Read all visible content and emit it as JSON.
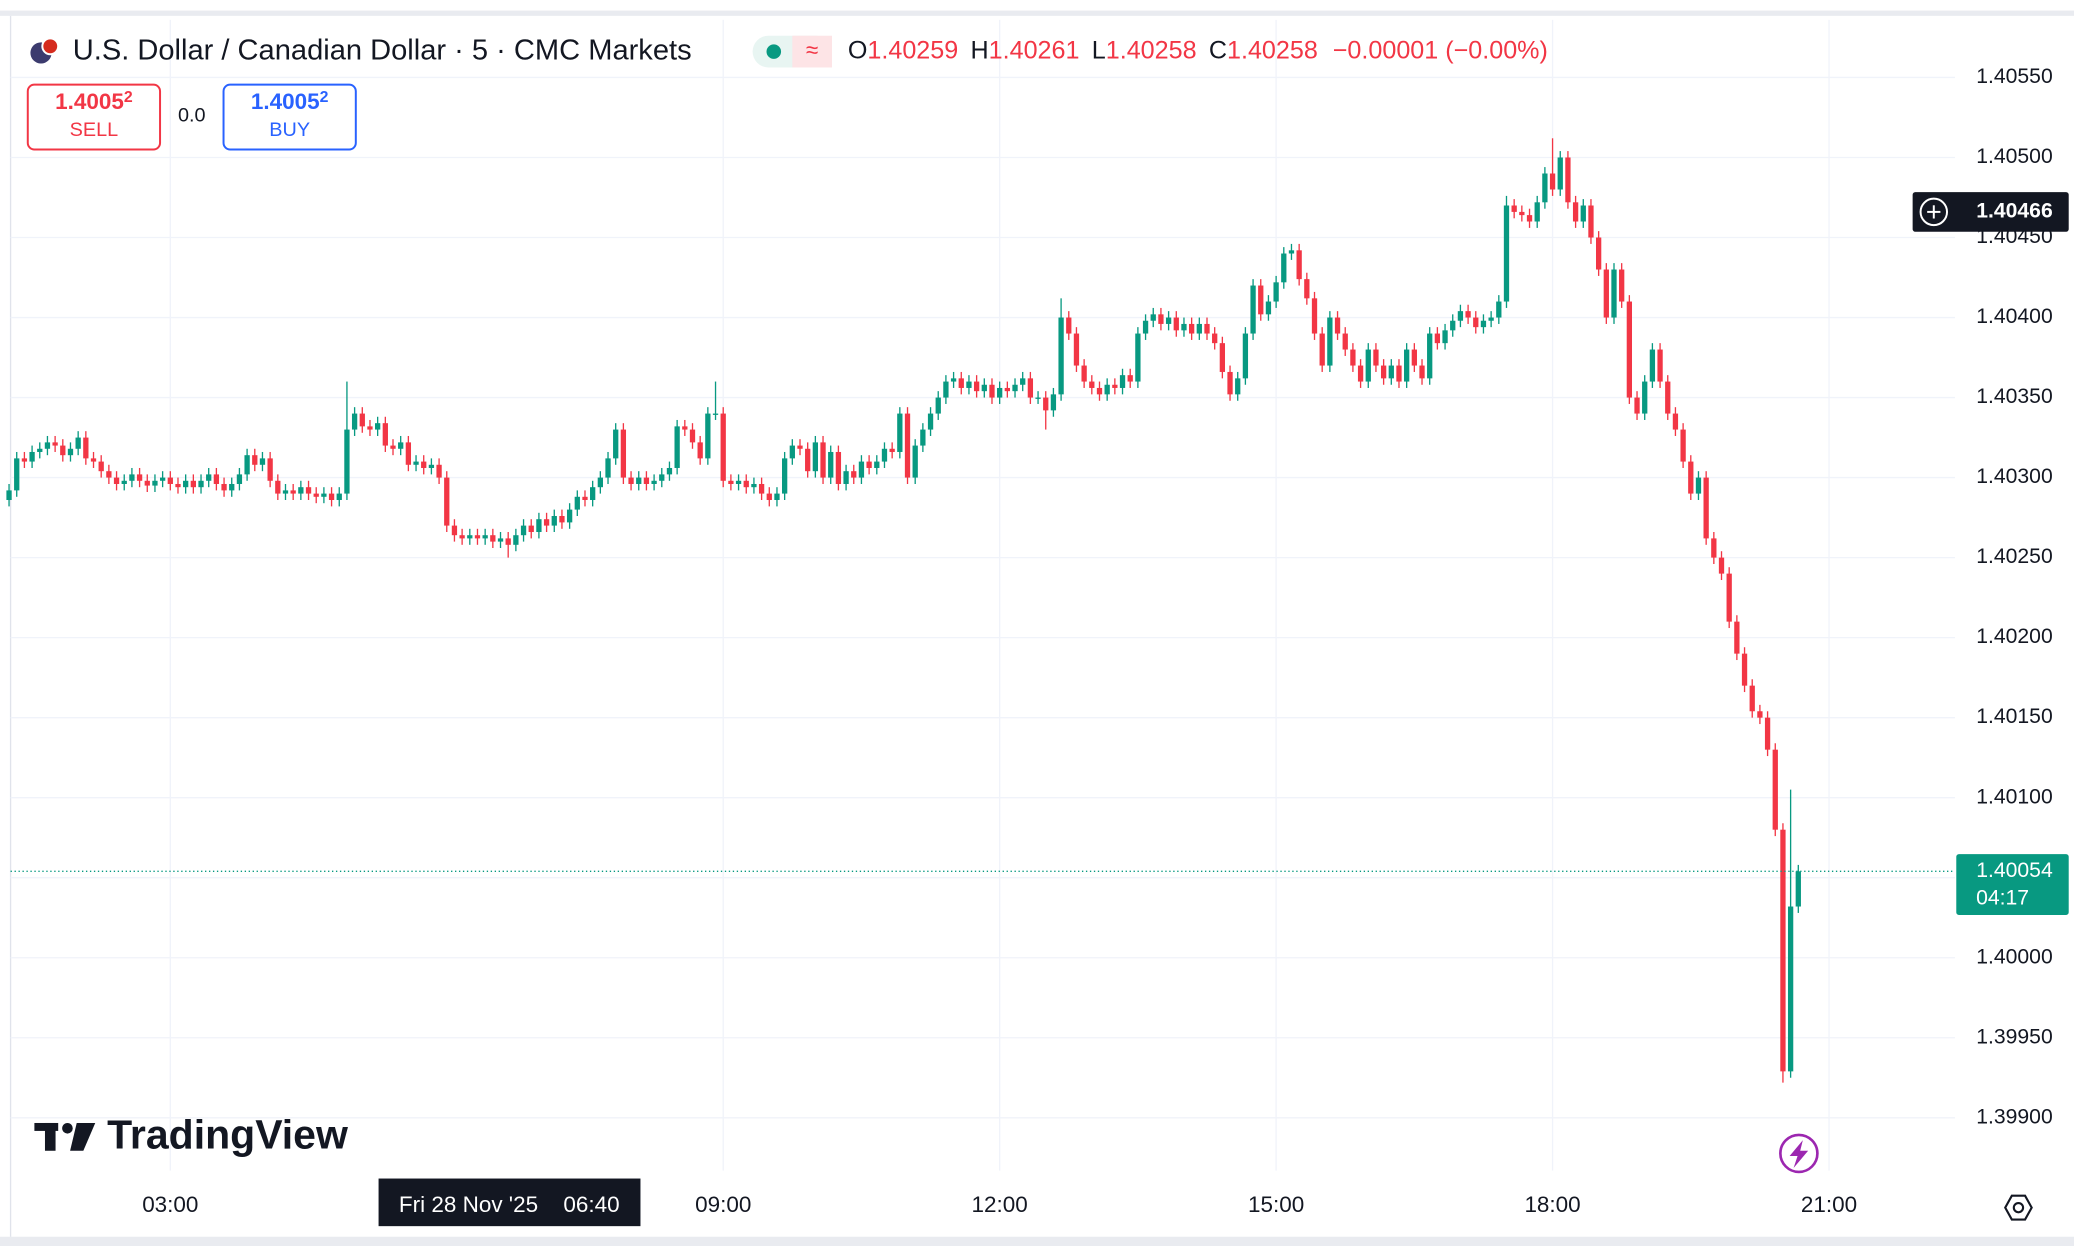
{
  "header": {
    "symbol": "U.S. Dollar / Canadian Dollar · 5 · CMC Markets",
    "ohlc": [
      {
        "label": "O",
        "value": "1.40259"
      },
      {
        "label": "H",
        "value": "1.40261"
      },
      {
        "label": "L",
        "value": "1.40258"
      },
      {
        "label": "C",
        "value": "1.40258"
      }
    ],
    "change": "−0.00001 (−0.00%)",
    "sell": {
      "price": "1.4005",
      "pip": "2",
      "label": "SELL"
    },
    "spread": "0.0",
    "buy": {
      "price": "1.4005",
      "pip": "2",
      "label": "BUY"
    },
    "watermark": "TradingView"
  },
  "chart_data": {
    "type": "candlestick",
    "up_color": "#089981",
    "down_color": "#f23645",
    "grid": true,
    "xlim": [
      0.2,
      253.4
    ],
    "ylim": [
      1.39867,
      1.40586
    ],
    "xticks": [
      {
        "value": 21,
        "label": "03:00"
      },
      {
        "value": 93,
        "label": "09:00"
      },
      {
        "value": 129,
        "label": "12:00"
      },
      {
        "value": 165,
        "label": "15:00"
      },
      {
        "value": 201,
        "label": "18:00"
      },
      {
        "value": 237,
        "label": "21:00"
      }
    ],
    "yticks": [
      {
        "value": 1.399,
        "label": "1.39900"
      },
      {
        "value": 1.3995,
        "label": "1.39950"
      },
      {
        "value": 1.4,
        "label": "1.40000"
      },
      {
        "value": 1.4005,
        "label": "1.40050"
      },
      {
        "value": 1.401,
        "label": "1.40100"
      },
      {
        "value": 1.4015,
        "label": "1.40150"
      },
      {
        "value": 1.402,
        "label": "1.40200"
      },
      {
        "value": 1.4025,
        "label": "1.40250"
      },
      {
        "value": 1.403,
        "label": "1.40300"
      },
      {
        "value": 1.4035,
        "label": "1.40350"
      },
      {
        "value": 1.404,
        "label": "1.40400"
      },
      {
        "value": 1.4045,
        "label": "1.40450"
      },
      {
        "value": 1.405,
        "label": "1.40500"
      },
      {
        "value": 1.4055,
        "label": "1.40550"
      }
    ],
    "crosshair": {
      "index": 65,
      "price": 1.40466,
      "date": "Fri 28 Nov '25",
      "time": "06:40"
    },
    "countdown": "04:17",
    "open": [
      1.40286,
      1.40292,
      1.40312,
      1.4031,
      1.40316,
      1.40318,
      1.40322,
      1.4032,
      1.40314,
      1.40318,
      1.40325,
      1.40312,
      1.4031,
      1.40304,
      1.403,
      1.40296,
      1.40298,
      1.40302,
      1.40298,
      1.40295,
      1.40298,
      1.403,
      1.40296,
      1.40294,
      1.40298,
      1.40294,
      1.40298,
      1.40302,
      1.40296,
      1.40292,
      1.40296,
      1.40302,
      1.40314,
      1.40308,
      1.40312,
      1.40298,
      1.4029,
      1.40292,
      1.4029,
      1.40294,
      1.4029,
      1.40288,
      1.4029,
      1.40286,
      1.4029,
      1.4033,
      1.4034,
      1.40332,
      1.4033,
      1.40334,
      1.4032,
      1.40318,
      1.40322,
      1.40308,
      1.4031,
      1.40306,
      1.40308,
      1.403,
      1.4027,
      1.40264,
      1.40262,
      1.40264,
      1.40262,
      1.40264,
      1.4026,
      1.40262,
      1.40258,
      1.40264,
      1.4027,
      1.40266,
      1.40274,
      1.4027,
      1.40276,
      1.40272,
      1.4028,
      1.40288,
      1.40286,
      1.40294,
      1.403,
      1.40312,
      1.4033,
      1.403,
      1.40296,
      1.403,
      1.40296,
      1.40298,
      1.40302,
      1.40306,
      1.40332,
      1.4033,
      1.40322,
      1.40312,
      1.4034,
      1.4034,
      1.40298,
      1.40296,
      1.40298,
      1.40294,
      1.40296,
      1.4029,
      1.40286,
      1.4029,
      1.40312,
      1.4032,
      1.40318,
      1.40304,
      1.40322,
      1.403,
      1.40316,
      1.40296,
      1.40304,
      1.403,
      1.4031,
      1.40306,
      1.4031,
      1.40318,
      1.40316,
      1.4034,
      1.403,
      1.4032,
      1.4033,
      1.4034,
      1.4035,
      1.4036,
      1.40362,
      1.40356,
      1.4036,
      1.40354,
      1.40358,
      1.4035,
      1.40356,
      1.40354,
      1.40358,
      1.40362,
      1.4035,
      1.4035,
      1.40342,
      1.40352,
      1.404,
      1.4039,
      1.4037,
      1.4036,
      1.40356,
      1.40352,
      1.40358,
      1.40356,
      1.40364,
      1.4036,
      1.4039,
      1.40398,
      1.40402,
      1.40396,
      1.404,
      1.40392,
      1.40396,
      1.4039,
      1.40396,
      1.4039,
      1.40384,
      1.40366,
      1.40352,
      1.40362,
      1.4039,
      1.4042,
      1.40402,
      1.4041,
      1.40422,
      1.4044,
      1.40442,
      1.40424,
      1.40412,
      1.4039,
      1.4037,
      1.404,
      1.4039,
      1.4038,
      1.4037,
      1.4036,
      1.4038,
      1.4037,
      1.40362,
      1.4037,
      1.4036,
      1.4038,
      1.4037,
      1.40362,
      1.4039,
      1.40384,
      1.40392,
      1.40398,
      1.40404,
      1.404,
      1.40394,
      1.40398,
      1.404,
      1.4041,
      1.4047,
      1.40466,
      1.40464,
      1.4046,
      1.40472,
      1.4049,
      1.4048,
      1.405,
      1.40472,
      1.4046,
      1.4047,
      1.4045,
      1.4043,
      1.404,
      1.4043,
      1.4041,
      1.4035,
      1.4034,
      1.4036,
      1.4038,
      1.4036,
      1.4034,
      1.4033,
      1.4031,
      1.4029,
      1.403,
      1.40262,
      1.4025,
      1.4024,
      1.4021,
      1.4019,
      1.4017,
      1.40154,
      1.4015,
      1.4013,
      1.4008,
      1.39929,
      1.40032
    ],
    "high": [
      1.40296,
      1.40316,
      1.40316,
      1.4032,
      1.40322,
      1.40326,
      1.40326,
      1.40324,
      1.40322,
      1.40329,
      1.40329,
      1.40316,
      1.40314,
      1.40308,
      1.40304,
      1.40302,
      1.40306,
      1.40306,
      1.40302,
      1.40302,
      1.40304,
      1.40304,
      1.403,
      1.40302,
      1.40302,
      1.40302,
      1.40306,
      1.40306,
      1.403,
      1.403,
      1.40306,
      1.40318,
      1.40318,
      1.40316,
      1.40316,
      1.40302,
      1.40296,
      1.40296,
      1.40298,
      1.40298,
      1.40294,
      1.40294,
      1.40294,
      1.40294,
      1.4036,
      1.40344,
      1.40344,
      1.40336,
      1.40338,
      1.40338,
      1.40324,
      1.40326,
      1.40326,
      1.40314,
      1.40314,
      1.40312,
      1.40312,
      1.40304,
      1.40274,
      1.40268,
      1.40268,
      1.40268,
      1.40268,
      1.40268,
      1.40266,
      1.40266,
      1.40268,
      1.40274,
      1.40274,
      1.40278,
      1.40278,
      1.4028,
      1.4028,
      1.40284,
      1.40292,
      1.40292,
      1.40298,
      1.40304,
      1.40316,
      1.40334,
      1.40334,
      1.40304,
      1.40304,
      1.40304,
      1.40302,
      1.40306,
      1.4031,
      1.40336,
      1.40336,
      1.40334,
      1.40326,
      1.40344,
      1.4036,
      1.40344,
      1.40302,
      1.40302,
      1.40302,
      1.403,
      1.403,
      1.40294,
      1.40294,
      1.40316,
      1.40324,
      1.40324,
      1.40322,
      1.40326,
      1.40326,
      1.4032,
      1.4032,
      1.40308,
      1.40308,
      1.40314,
      1.40314,
      1.40314,
      1.40322,
      1.40322,
      1.40344,
      1.40344,
      1.40324,
      1.40334,
      1.40344,
      1.40354,
      1.40364,
      1.40366,
      1.40366,
      1.40364,
      1.40364,
      1.40362,
      1.40362,
      1.4036,
      1.4036,
      1.40362,
      1.40366,
      1.40366,
      1.40354,
      1.40354,
      1.40356,
      1.40412,
      1.40404,
      1.40394,
      1.40374,
      1.40364,
      1.4036,
      1.40362,
      1.40362,
      1.40368,
      1.40368,
      1.40394,
      1.40402,
      1.40406,
      1.40406,
      1.40404,
      1.40404,
      1.404,
      1.404,
      1.404,
      1.404,
      1.40394,
      1.40388,
      1.4037,
      1.40366,
      1.40394,
      1.40424,
      1.40424,
      1.40414,
      1.40426,
      1.40444,
      1.40446,
      1.40446,
      1.40428,
      1.40416,
      1.40394,
      1.40404,
      1.40404,
      1.40394,
      1.40384,
      1.40374,
      1.40384,
      1.40384,
      1.40374,
      1.40374,
      1.40374,
      1.40384,
      1.40384,
      1.40374,
      1.40394,
      1.40394,
      1.40396,
      1.40402,
      1.40408,
      1.40408,
      1.40404,
      1.40402,
      1.40404,
      1.40414,
      1.40476,
      1.40474,
      1.4047,
      1.40468,
      1.40476,
      1.40494,
      1.40512,
      1.40504,
      1.40504,
      1.40476,
      1.40474,
      1.40474,
      1.40454,
      1.40434,
      1.40434,
      1.40434,
      1.40414,
      1.40354,
      1.40364,
      1.40384,
      1.40384,
      1.40364,
      1.40344,
      1.40334,
      1.40314,
      1.40304,
      1.40304,
      1.40266,
      1.40254,
      1.40244,
      1.40214,
      1.40194,
      1.40174,
      1.40158,
      1.40154,
      1.40134,
      1.40084,
      1.40105,
      1.40058
    ],
    "low": [
      1.40282,
      1.40288,
      1.40306,
      1.40306,
      1.40312,
      1.40314,
      1.40316,
      1.4031,
      1.4031,
      1.40314,
      1.40308,
      1.40306,
      1.403,
      1.40296,
      1.40292,
      1.40292,
      1.40294,
      1.40294,
      1.40291,
      1.40291,
      1.40294,
      1.40292,
      1.4029,
      1.4029,
      1.4029,
      1.4029,
      1.40294,
      1.40292,
      1.40288,
      1.40288,
      1.40292,
      1.40298,
      1.40304,
      1.40304,
      1.40294,
      1.40286,
      1.40286,
      1.40286,
      1.40286,
      1.40286,
      1.40284,
      1.40284,
      1.40282,
      1.40282,
      1.40286,
      1.40326,
      1.40328,
      1.40326,
      1.40326,
      1.40316,
      1.40314,
      1.40314,
      1.40304,
      1.40304,
      1.40302,
      1.40302,
      1.40296,
      1.40266,
      1.4026,
      1.40258,
      1.40258,
      1.40258,
      1.40258,
      1.40256,
      1.40256,
      1.4025,
      1.40254,
      1.4026,
      1.40262,
      1.40262,
      1.40266,
      1.40266,
      1.40268,
      1.40268,
      1.40276,
      1.40282,
      1.40282,
      1.4029,
      1.40296,
      1.40308,
      1.40296,
      1.40292,
      1.40292,
      1.40292,
      1.40292,
      1.40294,
      1.40298,
      1.40302,
      1.40326,
      1.40318,
      1.40308,
      1.40308,
      1.40336,
      1.40294,
      1.40292,
      1.40292,
      1.4029,
      1.4029,
      1.40286,
      1.40282,
      1.40282,
      1.40286,
      1.40308,
      1.40314,
      1.403,
      1.403,
      1.40296,
      1.40296,
      1.40292,
      1.40292,
      1.40296,
      1.40296,
      1.40302,
      1.40302,
      1.40306,
      1.40312,
      1.40312,
      1.40296,
      1.40296,
      1.40316,
      1.40326,
      1.40336,
      1.40346,
      1.40356,
      1.40352,
      1.40352,
      1.4035,
      1.4035,
      1.40346,
      1.40346,
      1.4035,
      1.4035,
      1.40354,
      1.40346,
      1.40346,
      1.4033,
      1.40338,
      1.40348,
      1.40386,
      1.40366,
      1.40356,
      1.40352,
      1.40348,
      1.40348,
      1.40352,
      1.40352,
      1.40356,
      1.40356,
      1.40386,
      1.40394,
      1.40392,
      1.40392,
      1.40388,
      1.40388,
      1.40386,
      1.40386,
      1.40386,
      1.4038,
      1.40362,
      1.40348,
      1.40348,
      1.40358,
      1.40386,
      1.40398,
      1.40398,
      1.40406,
      1.40418,
      1.40436,
      1.4042,
      1.40408,
      1.40386,
      1.40366,
      1.40366,
      1.40386,
      1.40376,
      1.40366,
      1.40356,
      1.40356,
      1.40366,
      1.40358,
      1.40358,
      1.40356,
      1.40356,
      1.40366,
      1.40358,
      1.40358,
      1.4038,
      1.4038,
      1.40388,
      1.40394,
      1.40396,
      1.4039,
      1.4039,
      1.40394,
      1.40396,
      1.40406,
      1.40462,
      1.4046,
      1.40456,
      1.40456,
      1.40468,
      1.40476,
      1.40476,
      1.40468,
      1.40456,
      1.40456,
      1.40446,
      1.40426,
      1.40396,
      1.40396,
      1.40406,
      1.40346,
      1.40336,
      1.40336,
      1.40356,
      1.40356,
      1.40336,
      1.40326,
      1.40306,
      1.40286,
      1.40286,
      1.40258,
      1.40246,
      1.40236,
      1.40206,
      1.40186,
      1.40166,
      1.4015,
      1.40146,
      1.40126,
      1.40076,
      1.39922,
      1.39925,
      1.40028
    ],
    "close": [
      1.40292,
      1.40312,
      1.4031,
      1.40316,
      1.40318,
      1.40322,
      1.4032,
      1.40314,
      1.40318,
      1.40325,
      1.40312,
      1.4031,
      1.40304,
      1.403,
      1.40296,
      1.40298,
      1.40302,
      1.40298,
      1.40295,
      1.40298,
      1.403,
      1.40296,
      1.40294,
      1.40298,
      1.40294,
      1.40298,
      1.40302,
      1.40296,
      1.40292,
      1.40296,
      1.40302,
      1.40314,
      1.40308,
      1.40312,
      1.40298,
      1.4029,
      1.40292,
      1.4029,
      1.40294,
      1.4029,
      1.40288,
      1.4029,
      1.40286,
      1.4029,
      1.4033,
      1.4034,
      1.40332,
      1.4033,
      1.40334,
      1.4032,
      1.40318,
      1.40322,
      1.40308,
      1.4031,
      1.40306,
      1.40308,
      1.403,
      1.4027,
      1.40264,
      1.40262,
      1.40264,
      1.40262,
      1.40264,
      1.4026,
      1.40262,
      1.40258,
      1.40264,
      1.4027,
      1.40266,
      1.40274,
      1.4027,
      1.40276,
      1.40272,
      1.4028,
      1.40288,
      1.40286,
      1.40294,
      1.403,
      1.40312,
      1.4033,
      1.403,
      1.40296,
      1.403,
      1.40296,
      1.40298,
      1.40302,
      1.40306,
      1.40332,
      1.4033,
      1.40322,
      1.40312,
      1.4034,
      1.4034,
      1.40298,
      1.40296,
      1.40298,
      1.40294,
      1.40296,
      1.4029,
      1.40286,
      1.4029,
      1.40312,
      1.4032,
      1.40318,
      1.40304,
      1.40322,
      1.403,
      1.40316,
      1.40296,
      1.40304,
      1.403,
      1.4031,
      1.40306,
      1.4031,
      1.40318,
      1.40316,
      1.4034,
      1.403,
      1.4032,
      1.4033,
      1.4034,
      1.4035,
      1.4036,
      1.40362,
      1.40356,
      1.4036,
      1.40354,
      1.40358,
      1.4035,
      1.40356,
      1.40354,
      1.40358,
      1.40362,
      1.4035,
      1.4035,
      1.40342,
      1.40352,
      1.404,
      1.4039,
      1.4037,
      1.4036,
      1.40356,
      1.40352,
      1.40358,
      1.40356,
      1.40364,
      1.4036,
      1.4039,
      1.40398,
      1.40402,
      1.40396,
      1.404,
      1.40392,
      1.40396,
      1.4039,
      1.40396,
      1.4039,
      1.40384,
      1.40366,
      1.40352,
      1.40362,
      1.4039,
      1.4042,
      1.40402,
      1.4041,
      1.40422,
      1.4044,
      1.40442,
      1.40424,
      1.40412,
      1.4039,
      1.4037,
      1.404,
      1.4039,
      1.4038,
      1.4037,
      1.4036,
      1.4038,
      1.4037,
      1.40362,
      1.4037,
      1.4036,
      1.4038,
      1.4037,
      1.40362,
      1.4039,
      1.40384,
      1.40392,
      1.40398,
      1.40404,
      1.404,
      1.40394,
      1.40398,
      1.404,
      1.4041,
      1.4047,
      1.40466,
      1.40464,
      1.4046,
      1.40472,
      1.4049,
      1.4048,
      1.405,
      1.40472,
      1.4046,
      1.4047,
      1.4045,
      1.4043,
      1.404,
      1.4043,
      1.4041,
      1.4035,
      1.4034,
      1.4036,
      1.4038,
      1.4036,
      1.4034,
      1.4033,
      1.4031,
      1.4029,
      1.403,
      1.40262,
      1.4025,
      1.4024,
      1.4021,
      1.4019,
      1.4017,
      1.40154,
      1.4015,
      1.4013,
      1.4008,
      1.39929,
      1.40032,
      1.40054
    ]
  }
}
